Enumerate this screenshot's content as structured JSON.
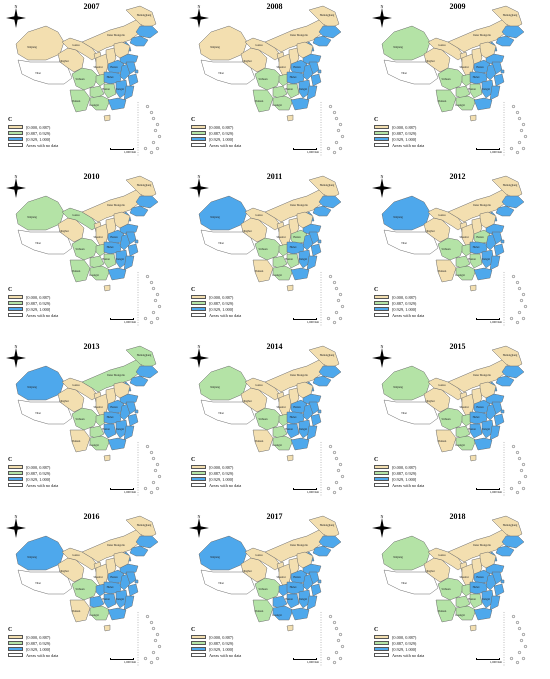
{
  "legend": {
    "title": "C",
    "classes": [
      {
        "label": "[0.000, 0.887)",
        "color": "#f3dfb0"
      },
      {
        "label": "[0.887, 0.929)",
        "color": "#b4e3a6"
      },
      {
        "label": "[0.929, 1.000]",
        "color": "#4ea8ec"
      },
      {
        "label": "Areas with no data",
        "color": "#ffffff"
      }
    ]
  },
  "scale_label": "1,600 Km",
  "compass_letter": "N",
  "colors": {
    "low": "#f3dfb0",
    "mid": "#b4e3a6",
    "high": "#4ea8ec",
    "nodata": "#ffffff",
    "border": "#6b6b6b"
  },
  "province_labels": {
    "Xinjiang": "Xinjiang",
    "Tibet": "Tibet",
    "Qinghai": "Qinghai",
    "Gansu": "Gansu",
    "Inner Mongolia": "Inner Mongolia",
    "Heilongjiang": "Heilongjiang",
    "Sichuan": "Sichuan",
    "Yunnan": "Yunnan",
    "Hunan": "Hunan",
    "Hubei": "Hubei",
    "Henan": "Henan",
    "Guangxi": "Guangxi",
    "Jiangxi": "Jiangxi",
    "Shaanxi": "Shaanxi"
  },
  "maps": [
    {
      "year": "2007",
      "classes": {
        "Xinjiang": "low",
        "Tibet": "nodata",
        "Qinghai": "low",
        "Gansu": "low",
        "Inner Mongolia": "low",
        "Heilongjiang": "low",
        "Jilin": "high",
        "Liaoning": "high",
        "Beijing": "high",
        "Tianjin": "high",
        "Hebei": "low",
        "Shanxi": "low",
        "Shandong": "high",
        "Ningxia": "low",
        "Shaanxi": "low",
        "Henan": "high",
        "Sichuan": "mid",
        "Chongqing": "mid",
        "Hubei": "high",
        "Anhui": "high",
        "Jiangsu": "high",
        "Shanghai": "high",
        "Zhejiang": "high",
        "Hunan": "mid",
        "Jiangxi": "high",
        "Fujian": "high",
        "Guizhou": "mid",
        "Yunnan": "mid",
        "Guangxi": "mid",
        "Guangdong": "high",
        "Hainan": "low"
      }
    },
    {
      "year": "2008",
      "classes": {
        "Xinjiang": "low",
        "Tibet": "nodata",
        "Qinghai": "low",
        "Gansu": "low",
        "Inner Mongolia": "low",
        "Heilongjiang": "low",
        "Jilin": "high",
        "Liaoning": "high",
        "Beijing": "high",
        "Tianjin": "high",
        "Hebei": "low",
        "Shanxi": "low",
        "Shandong": "high",
        "Ningxia": "low",
        "Shaanxi": "low",
        "Henan": "high",
        "Sichuan": "mid",
        "Chongqing": "mid",
        "Hubei": "high",
        "Anhui": "high",
        "Jiangsu": "high",
        "Shanghai": "high",
        "Zhejiang": "high",
        "Hunan": "mid",
        "Jiangxi": "high",
        "Fujian": "high",
        "Guizhou": "mid",
        "Yunnan": "mid",
        "Guangxi": "mid",
        "Guangdong": "high",
        "Hainan": "low"
      }
    },
    {
      "year": "2009",
      "classes": {
        "Xinjiang": "mid",
        "Tibet": "nodata",
        "Qinghai": "low",
        "Gansu": "low",
        "Inner Mongolia": "low",
        "Heilongjiang": "low",
        "Jilin": "high",
        "Liaoning": "high",
        "Beijing": "high",
        "Tianjin": "high",
        "Hebei": "low",
        "Shanxi": "low",
        "Shandong": "high",
        "Ningxia": "low",
        "Shaanxi": "low",
        "Henan": "high",
        "Sichuan": "mid",
        "Chongqing": "mid",
        "Hubei": "high",
        "Anhui": "high",
        "Jiangsu": "high",
        "Shanghai": "high",
        "Zhejiang": "high",
        "Hunan": "mid",
        "Jiangxi": "high",
        "Fujian": "high",
        "Guizhou": "mid",
        "Yunnan": "mid",
        "Guangxi": "mid",
        "Guangdong": "high",
        "Hainan": "low"
      }
    },
    {
      "year": "2010",
      "classes": {
        "Xinjiang": "mid",
        "Tibet": "nodata",
        "Qinghai": "low",
        "Gansu": "mid",
        "Inner Mongolia": "low",
        "Heilongjiang": "low",
        "Jilin": "high",
        "Liaoning": "high",
        "Beijing": "high",
        "Tianjin": "high",
        "Hebei": "low",
        "Shanxi": "low",
        "Shandong": "high",
        "Ningxia": "low",
        "Shaanxi": "low",
        "Henan": "high",
        "Sichuan": "mid",
        "Chongqing": "mid",
        "Hubei": "high",
        "Anhui": "high",
        "Jiangsu": "high",
        "Shanghai": "high",
        "Zhejiang": "high",
        "Hunan": "mid",
        "Jiangxi": "high",
        "Fujian": "high",
        "Guizhou": "mid",
        "Yunnan": "mid",
        "Guangxi": "mid",
        "Guangdong": "high",
        "Hainan": "low"
      }
    },
    {
      "year": "2011",
      "classes": {
        "Xinjiang": "high",
        "Tibet": "nodata",
        "Qinghai": "low",
        "Gansu": "low",
        "Inner Mongolia": "low",
        "Heilongjiang": "low",
        "Jilin": "high",
        "Liaoning": "high",
        "Beijing": "high",
        "Tianjin": "high",
        "Hebei": "low",
        "Shanxi": "low",
        "Shandong": "high",
        "Ningxia": "low",
        "Shaanxi": "low",
        "Henan": "mid",
        "Sichuan": "mid",
        "Chongqing": "mid",
        "Hubei": "high",
        "Anhui": "high",
        "Jiangsu": "high",
        "Shanghai": "high",
        "Zhejiang": "high",
        "Hunan": "mid",
        "Jiangxi": "high",
        "Fujian": "high",
        "Guizhou": "mid",
        "Yunnan": "low",
        "Guangxi": "mid",
        "Guangdong": "high",
        "Hainan": "low"
      }
    },
    {
      "year": "2012",
      "classes": {
        "Xinjiang": "high",
        "Tibet": "nodata",
        "Qinghai": "low",
        "Gansu": "low",
        "Inner Mongolia": "low",
        "Heilongjiang": "low",
        "Jilin": "high",
        "Liaoning": "high",
        "Beijing": "high",
        "Tianjin": "high",
        "Hebei": "low",
        "Shanxi": "low",
        "Shandong": "high",
        "Ningxia": "low",
        "Shaanxi": "low",
        "Henan": "mid",
        "Sichuan": "mid",
        "Chongqing": "mid",
        "Hubei": "high",
        "Anhui": "high",
        "Jiangsu": "high",
        "Shanghai": "high",
        "Zhejiang": "high",
        "Hunan": "mid",
        "Jiangxi": "high",
        "Fujian": "high",
        "Guizhou": "mid",
        "Yunnan": "low",
        "Guangxi": "mid",
        "Guangdong": "high",
        "Hainan": "low"
      }
    },
    {
      "year": "2013",
      "classes": {
        "Xinjiang": "high",
        "Tibet": "nodata",
        "Qinghai": "low",
        "Gansu": "low",
        "Inner Mongolia": "mid",
        "Heilongjiang": "mid",
        "Jilin": "high",
        "Liaoning": "high",
        "Beijing": "high",
        "Tianjin": "high",
        "Hebei": "low",
        "Shanxi": "low",
        "Shandong": "high",
        "Ningxia": "low",
        "Shaanxi": "low",
        "Henan": "high",
        "Sichuan": "mid",
        "Chongqing": "mid",
        "Hubei": "high",
        "Anhui": "high",
        "Jiangsu": "high",
        "Shanghai": "high",
        "Zhejiang": "high",
        "Hunan": "high",
        "Jiangxi": "high",
        "Fujian": "high",
        "Guizhou": "mid",
        "Yunnan": "low",
        "Guangxi": "mid",
        "Guangdong": "high",
        "Hainan": "low"
      }
    },
    {
      "year": "2014",
      "classes": {
        "Xinjiang": "mid",
        "Tibet": "nodata",
        "Qinghai": "low",
        "Gansu": "low",
        "Inner Mongolia": "low",
        "Heilongjiang": "low",
        "Jilin": "high",
        "Liaoning": "high",
        "Beijing": "high",
        "Tianjin": "high",
        "Hebei": "low",
        "Shanxi": "low",
        "Shandong": "high",
        "Ningxia": "low",
        "Shaanxi": "low",
        "Henan": "high",
        "Sichuan": "mid",
        "Chongqing": "mid",
        "Hubei": "high",
        "Anhui": "high",
        "Jiangsu": "high",
        "Shanghai": "high",
        "Zhejiang": "high",
        "Hunan": "high",
        "Jiangxi": "high",
        "Fujian": "high",
        "Guizhou": "mid",
        "Yunnan": "low",
        "Guangxi": "mid",
        "Guangdong": "high",
        "Hainan": "low"
      }
    },
    {
      "year": "2015",
      "classes": {
        "Xinjiang": "mid",
        "Tibet": "nodata",
        "Qinghai": "low",
        "Gansu": "low",
        "Inner Mongolia": "low",
        "Heilongjiang": "low",
        "Jilin": "high",
        "Liaoning": "high",
        "Beijing": "high",
        "Tianjin": "high",
        "Hebei": "low",
        "Shanxi": "low",
        "Shandong": "high",
        "Ningxia": "low",
        "Shaanxi": "low",
        "Henan": "high",
        "Sichuan": "mid",
        "Chongqing": "mid",
        "Hubei": "high",
        "Anhui": "high",
        "Jiangsu": "high",
        "Shanghai": "high",
        "Zhejiang": "high",
        "Hunan": "high",
        "Jiangxi": "high",
        "Fujian": "high",
        "Guizhou": "mid",
        "Yunnan": "low",
        "Guangxi": "mid",
        "Guangdong": "high",
        "Hainan": "low"
      }
    },
    {
      "year": "2016",
      "classes": {
        "Xinjiang": "high",
        "Tibet": "nodata",
        "Qinghai": "low",
        "Gansu": "low",
        "Inner Mongolia": "low",
        "Heilongjiang": "low",
        "Jilin": "high",
        "Liaoning": "high",
        "Beijing": "high",
        "Tianjin": "high",
        "Hebei": "low",
        "Shanxi": "low",
        "Shandong": "high",
        "Ningxia": "low",
        "Shaanxi": "low",
        "Henan": "high",
        "Sichuan": "mid",
        "Chongqing": "high",
        "Hubei": "high",
        "Anhui": "high",
        "Jiangsu": "high",
        "Shanghai": "high",
        "Zhejiang": "high",
        "Hunan": "high",
        "Jiangxi": "high",
        "Fujian": "high",
        "Guizhou": "high",
        "Yunnan": "low",
        "Guangxi": "mid",
        "Guangdong": "high",
        "Hainan": "low"
      }
    },
    {
      "year": "2017",
      "classes": {
        "Xinjiang": "high",
        "Tibet": "nodata",
        "Qinghai": "low",
        "Gansu": "low",
        "Inner Mongolia": "low",
        "Heilongjiang": "low",
        "Jilin": "high",
        "Liaoning": "high",
        "Beijing": "high",
        "Tianjin": "high",
        "Hebei": "low",
        "Shanxi": "low",
        "Shandong": "high",
        "Ningxia": "low",
        "Shaanxi": "low",
        "Henan": "high",
        "Sichuan": "mid",
        "Chongqing": "high",
        "Hubei": "high",
        "Anhui": "high",
        "Jiangsu": "high",
        "Shanghai": "high",
        "Zhejiang": "high",
        "Hunan": "high",
        "Jiangxi": "high",
        "Fujian": "high",
        "Guizhou": "high",
        "Yunnan": "mid",
        "Guangxi": "high",
        "Guangdong": "high",
        "Hainan": "low"
      }
    },
    {
      "year": "2018",
      "classes": {
        "Xinjiang": "mid",
        "Tibet": "nodata",
        "Qinghai": "low",
        "Gansu": "low",
        "Inner Mongolia": "low",
        "Heilongjiang": "low",
        "Jilin": "high",
        "Liaoning": "high",
        "Beijing": "high",
        "Tianjin": "high",
        "Hebei": "low",
        "Shanxi": "low",
        "Shandong": "high",
        "Ningxia": "low",
        "Shaanxi": "low",
        "Henan": "high",
        "Sichuan": "mid",
        "Chongqing": "mid",
        "Hubei": "high",
        "Anhui": "high",
        "Jiangsu": "high",
        "Shanghai": "high",
        "Zhejiang": "high",
        "Hunan": "mid",
        "Jiangxi": "high",
        "Fujian": "high",
        "Guizhou": "mid",
        "Yunnan": "mid",
        "Guangxi": "mid",
        "Guangdong": "high",
        "Hainan": "low"
      }
    }
  ]
}
